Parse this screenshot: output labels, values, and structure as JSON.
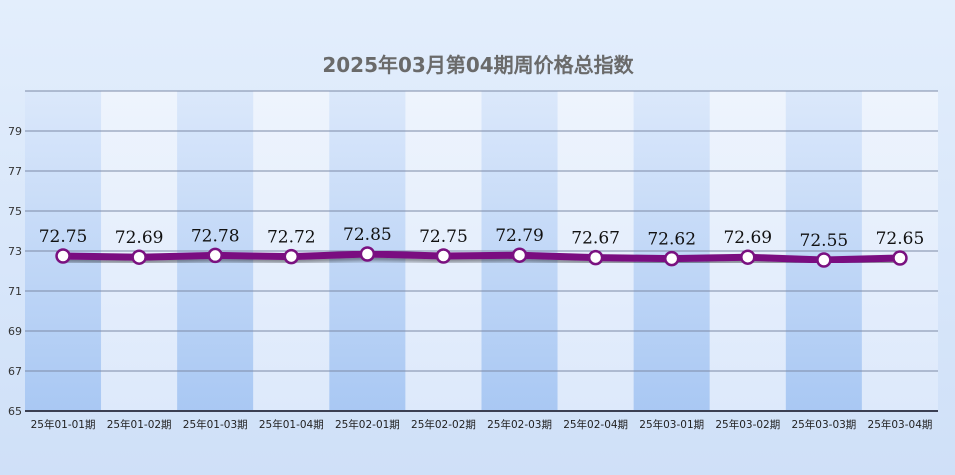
{
  "chart_data": {
    "type": "line",
    "title": "2025年03月第04期周价格总指数",
    "categories": [
      "25年01-01期",
      "25年01-02期",
      "25年01-03期",
      "25年01-04期",
      "25年02-01期",
      "25年02-02期",
      "25年02-03期",
      "25年02-04期",
      "25年03-01期",
      "25年03-02期",
      "25年03-03期",
      "25年03-04期"
    ],
    "values": [
      72.75,
      72.69,
      72.78,
      72.72,
      72.85,
      72.75,
      72.79,
      72.67,
      72.62,
      72.69,
      72.55,
      72.65
    ],
    "value_labels": [
      "72.75",
      "72.69",
      "72.78",
      "72.72",
      "72.85",
      "72.75",
      "72.79",
      "72.67",
      "72.62",
      "72.69",
      "72.55",
      "72.65"
    ],
    "yticks": [
      "65",
      "67",
      "69",
      "71",
      "73",
      "75",
      "77",
      "79"
    ],
    "ylim": [
      65,
      81
    ],
    "grid": true,
    "colors": {
      "line": "#7a1180",
      "marker_fill": "#ffffff",
      "band_dark": "#a9c8f3",
      "band_light": "#e6f0fd",
      "grid": "#7d8aa6",
      "title": "#6a6a6a"
    }
  }
}
